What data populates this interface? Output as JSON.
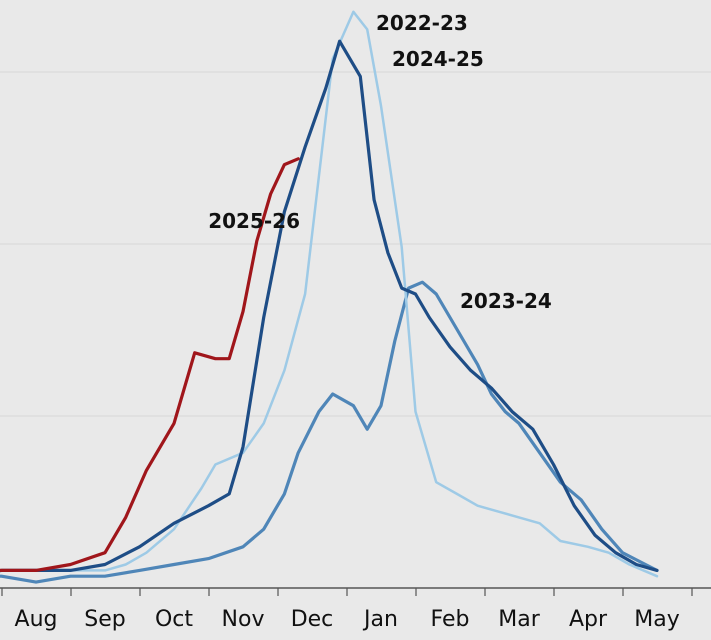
{
  "chart_data": {
    "type": "line",
    "title": "",
    "xlabel": "",
    "ylabel": "",
    "x_tick_labels": [
      "Aug",
      "Sep",
      "Oct",
      "Nov",
      "Dec",
      "Jan",
      "Feb",
      "Mar",
      "Apr",
      "May",
      "J"
    ],
    "y_axis": {
      "labels_visible": false,
      "ylim": [
        0,
        100
      ]
    },
    "grid": {
      "horizontal": true,
      "vertical": false
    },
    "legend": "none (series labelled directly on the lines)",
    "colors": {
      "background": "#e9e9e9",
      "grid": "#d6d6d6",
      "axis": "#555555",
      "2022-23": "#9ecae6",
      "2023-24": "#4f86b8",
      "2024-25": "#1e4d86",
      "2025-26": "#a0161b"
    },
    "series": [
      {
        "name": "2022-23",
        "x": [
          -1.4,
          -1.0,
          -0.5,
          0.0,
          0.5,
          1.0,
          1.3,
          1.6,
          2.0,
          2.4,
          2.6,
          3.0,
          3.3,
          3.6,
          3.9,
          4.1,
          4.3,
          4.6,
          4.8,
          5.0,
          5.3,
          5.5,
          5.8,
          6.1,
          6.4,
          6.7,
          7.0,
          7.3,
          7.6,
          8.0,
          8.3,
          8.6,
          9.0
        ],
        "y": [
          2,
          2,
          3,
          3,
          3,
          3,
          4,
          6,
          10,
          17,
          21,
          23,
          28,
          37,
          50,
          70,
          90,
          98,
          95,
          82,
          58,
          30,
          18,
          16,
          14,
          13,
          12,
          11,
          8,
          7,
          6,
          4,
          2
        ]
      },
      {
        "name": "2023-24",
        "x": [
          -1.4,
          -1.0,
          -0.5,
          0.0,
          0.5,
          1.0,
          1.5,
          2.0,
          2.5,
          3.0,
          3.3,
          3.6,
          3.8,
          4.1,
          4.3,
          4.6,
          4.8,
          5.0,
          5.2,
          5.4,
          5.6,
          5.8,
          6.0,
          6.2,
          6.4,
          6.6,
          6.8,
          7.0,
          7.3,
          7.6,
          7.9,
          8.2,
          8.5,
          9.0
        ],
        "y": [
          2,
          2,
          2,
          1,
          2,
          2,
          3,
          4,
          5,
          7,
          10,
          16,
          23,
          30,
          33,
          31,
          27,
          31,
          42,
          51,
          52,
          50,
          46,
          42,
          38,
          33,
          30,
          28,
          23,
          18,
          15,
          10,
          6,
          3
        ]
      },
      {
        "name": "2024-25",
        "x": [
          -1.4,
          -1.0,
          -0.5,
          0.0,
          0.5,
          1.0,
          1.5,
          2.0,
          2.5,
          2.8,
          3.0,
          3.3,
          3.6,
          3.9,
          4.2,
          4.4,
          4.7,
          4.9,
          5.1,
          5.3,
          5.5,
          5.7,
          6.0,
          6.3,
          6.6,
          6.9,
          7.2,
          7.5,
          7.8,
          8.1,
          8.4,
          8.7,
          9.0
        ],
        "y": [
          3,
          2,
          3,
          3,
          3,
          4,
          7,
          11,
          14,
          16,
          24,
          46,
          64,
          75,
          85,
          93,
          87,
          66,
          57,
          51,
          50,
          46,
          41,
          37,
          34,
          30,
          27,
          21,
          14,
          9,
          6,
          4,
          3
        ]
      },
      {
        "name": "2025-26",
        "x": [
          -1.4,
          -1.0,
          -0.5,
          0.0,
          0.5,
          1.0,
          1.3,
          1.6,
          2.0,
          2.3,
          2.6,
          2.8,
          3.0,
          3.2,
          3.4,
          3.6,
          3.8
        ],
        "y": [
          2,
          3,
          3,
          3,
          4,
          6,
          12,
          20,
          28,
          40,
          39,
          39,
          47,
          59,
          67,
          72,
          73
        ]
      }
    ]
  }
}
